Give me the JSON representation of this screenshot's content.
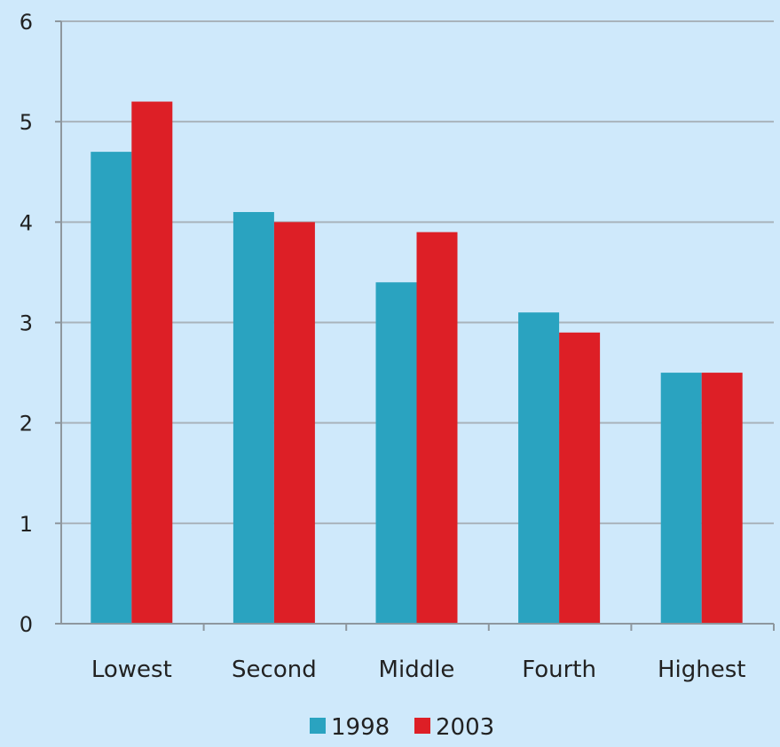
{
  "chart_data": {
    "type": "bar",
    "title": "",
    "xlabel": "",
    "ylabel": "",
    "categories": [
      "Lowest",
      "Second",
      "Middle",
      "Fourth",
      "Highest"
    ],
    "series": [
      {
        "name": "1998",
        "values": [
          4.7,
          4.1,
          3.4,
          3.1,
          2.5
        ],
        "color": "#2aa3c0"
      },
      {
        "name": "2003",
        "values": [
          5.2,
          4.0,
          3.9,
          2.9,
          2.5
        ],
        "color": "#dd1f26"
      }
    ],
    "ylim": [
      0,
      6
    ],
    "yticks": [
      "0",
      "1",
      "2",
      "3",
      "4",
      "5",
      "6"
    ],
    "grid": true,
    "legend_position": "bottom-center"
  },
  "colors": {
    "background": "#cfe9fb",
    "gridline": "#a9b3bb",
    "axis": "#8e979e"
  }
}
